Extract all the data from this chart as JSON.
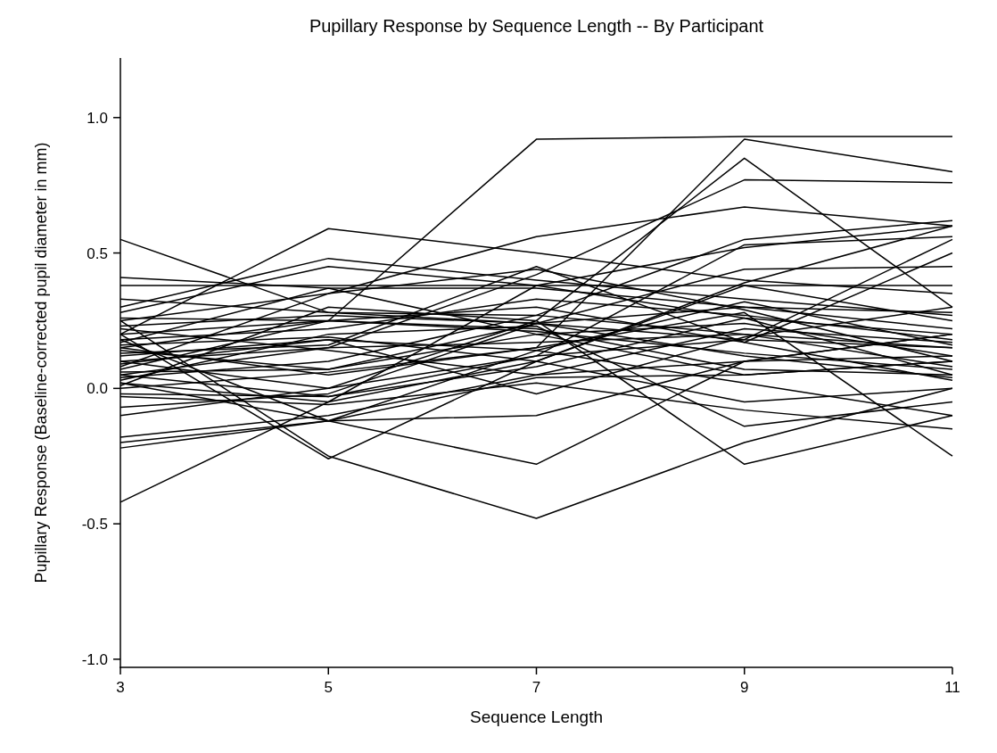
{
  "chart_data": {
    "type": "line",
    "title": "Pupillary Response by Sequence Length -- By Participant",
    "xlabel": "Sequence Length",
    "ylabel": "Pupillary Response (Baseline-corrected pupil diameter in mm)",
    "x": [
      3,
      5,
      7,
      9,
      11
    ],
    "xlim": [
      3,
      11
    ],
    "xticks": [
      3,
      5,
      7,
      9,
      11
    ],
    "ylim": [
      -1.03,
      1.22
    ],
    "yticks": [
      {
        "value": -1,
        "label": "-1.0"
      },
      {
        "value": -0.5,
        "label": "-0.5"
      },
      {
        "value": 0,
        "label": "0.0"
      },
      {
        "value": 0.5,
        "label": "0.5"
      },
      {
        "value": 1,
        "label": "1.0"
      }
    ],
    "grid": false,
    "marker": "none",
    "line_style": "solid",
    "series": [
      {
        "color": "#000000",
        "values": [
          0.55,
          0.28,
          0.24,
          0.18,
          0.15
        ]
      },
      {
        "color": "#000000",
        "values": [
          -0.42,
          -0.05,
          0.38,
          0.52,
          0.6
        ]
      },
      {
        "color": "#000000",
        "values": [
          0.2,
          0.25,
          0.92,
          0.93,
          0.93
        ]
      },
      {
        "color": "#000000",
        "values": [
          0.15,
          0.05,
          0.15,
          0.92,
          0.8
        ]
      },
      {
        "color": "#000000",
        "values": [
          0.1,
          0.0,
          0.25,
          0.85,
          0.3
        ]
      },
      {
        "color": "#000000",
        "values": [
          0.05,
          0.15,
          0.42,
          0.77,
          0.76
        ]
      },
      {
        "color": "#000000",
        "values": [
          0.25,
          0.35,
          0.56,
          0.67,
          0.6
        ]
      },
      {
        "color": "#000000",
        "values": [
          0.2,
          0.59,
          0.5,
          0.4,
          0.35
        ]
      },
      {
        "color": "#000000",
        "values": [
          0.25,
          -0.25,
          -0.48,
          -0.2,
          0.0
        ]
      },
      {
        "color": "#000000",
        "values": [
          0.18,
          -0.12,
          -0.28,
          0.1,
          0.2
        ]
      },
      {
        "color": "#000000",
        "values": [
          0.2,
          -0.26,
          0.1,
          0.38,
          0.25
        ]
      },
      {
        "color": "#000000",
        "values": [
          0.01,
          0.3,
          0.25,
          -0.28,
          -0.1
        ]
      },
      {
        "color": "#000000",
        "values": [
          0.41,
          0.37,
          0.37,
          0.3,
          0.28
        ]
      },
      {
        "color": "#000000",
        "values": [
          0.38,
          0.38,
          0.38,
          0.38,
          0.38
        ]
      },
      {
        "color": "#000000",
        "values": [
          0.33,
          0.28,
          0.27,
          0.2,
          0.15
        ]
      },
      {
        "color": "#000000",
        "values": [
          0.3,
          0.48,
          0.4,
          0.33,
          0.27
        ]
      },
      {
        "color": "#000000",
        "values": [
          0.28,
          0.45,
          0.38,
          0.26,
          0.2
        ]
      },
      {
        "color": "#000000",
        "values": [
          -0.18,
          -0.1,
          0.05,
          0.22,
          0.17
        ]
      },
      {
        "color": "#000000",
        "values": [
          -0.2,
          -0.12,
          -0.1,
          0.1,
          0.12
        ]
      },
      {
        "color": "#000000",
        "values": [
          -0.22,
          -0.12,
          0.04,
          0.05,
          0.1
        ]
      },
      {
        "color": "#000000",
        "values": [
          -0.1,
          0.0,
          0.12,
          0.53,
          0.56
        ]
      },
      {
        "color": "#000000",
        "values": [
          -0.07,
          -0.02,
          0.24,
          0.44,
          0.45
        ]
      },
      {
        "color": "#000000",
        "values": [
          0.0,
          0.06,
          0.15,
          0.28,
          -0.25
        ]
      },
      {
        "color": "#000000",
        "values": [
          0.02,
          -0.05,
          0.1,
          0.39,
          0.6
        ]
      },
      {
        "color": "#000000",
        "values": [
          0.03,
          0.2,
          0.23,
          -0.14,
          -0.05
        ]
      },
      {
        "color": "#000000",
        "values": [
          0.04,
          0.1,
          0.27,
          0.55,
          0.62
        ]
      },
      {
        "color": "#000000",
        "values": [
          0.06,
          0.07,
          0.2,
          0.05,
          0.1
        ]
      },
      {
        "color": "#000000",
        "values": [
          0.07,
          0.25,
          0.3,
          0.17,
          0.03
        ]
      },
      {
        "color": "#000000",
        "values": [
          0.08,
          0.35,
          0.44,
          0.29,
          0.1
        ]
      },
      {
        "color": "#000000",
        "values": [
          0.1,
          0.15,
          0.17,
          0.2,
          0.08
        ]
      },
      {
        "color": "#000000",
        "values": [
          0.12,
          0.18,
          0.14,
          0.02,
          -0.1
        ]
      },
      {
        "color": "#000000",
        "values": [
          0.13,
          0.16,
          0.45,
          0.17,
          0.5
        ]
      },
      {
        "color": "#000000",
        "values": [
          0.15,
          0.25,
          0.22,
          0.07,
          0.05
        ]
      },
      {
        "color": "#000000",
        "values": [
          0.16,
          0.19,
          0.1,
          -0.05,
          0.0
        ]
      },
      {
        "color": "#000000",
        "values": [
          0.17,
          0.37,
          0.2,
          0.24,
          0.12
        ]
      },
      {
        "color": "#000000",
        "values": [
          0.18,
          0.22,
          0.33,
          0.27,
          0.18
        ]
      },
      {
        "color": "#000000",
        "values": [
          0.22,
          0.14,
          0.05,
          0.1,
          0.2
        ]
      },
      {
        "color": "#000000",
        "values": [
          0.23,
          0.27,
          0.24,
          0.3,
          0.22
        ]
      },
      {
        "color": "#000000",
        "values": [
          0.26,
          0.25,
          0.21,
          0.13,
          0.07
        ]
      },
      {
        "color": "#000000",
        "values": [
          -0.02,
          -0.03,
          0.08,
          0.26,
          0.05
        ]
      },
      {
        "color": "#000000",
        "values": [
          -0.03,
          -0.06,
          0.02,
          -0.08,
          -0.15
        ]
      },
      {
        "color": "#000000",
        "values": [
          0.05,
          -0.03,
          0.12,
          0.18,
          0.55
        ]
      },
      {
        "color": "#000000",
        "values": [
          0.09,
          0.18,
          -0.02,
          0.19,
          0.3
        ]
      },
      {
        "color": "#000000",
        "values": [
          0.02,
          -0.12,
          0.14,
          0.32,
          0.16
        ]
      },
      {
        "color": "#000000",
        "values": [
          0.14,
          0.07,
          0.24,
          0.12,
          0.04
        ]
      }
    ]
  }
}
